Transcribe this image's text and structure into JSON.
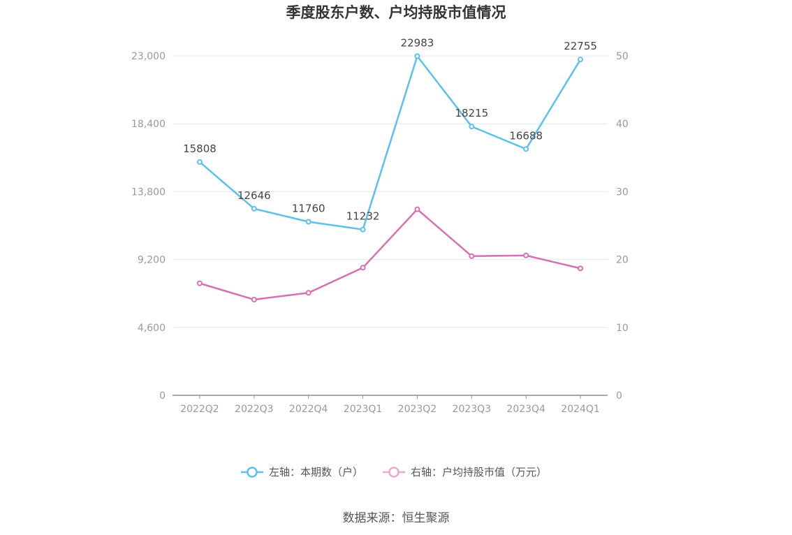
{
  "chart_data": {
    "type": "line",
    "title": "季度股东户数、户均持股市值情况",
    "categories": [
      "2022Q2",
      "2022Q3",
      "2022Q4",
      "2023Q1",
      "2023Q2",
      "2023Q3",
      "2023Q4",
      "2024Q1"
    ],
    "left_axis": {
      "ticks": [
        "0",
        "4,600",
        "9,200",
        "13,800",
        "18,400",
        "23,000"
      ],
      "ylim": [
        0,
        23000
      ]
    },
    "right_axis": {
      "ticks": [
        "0",
        "10",
        "20",
        "30",
        "40",
        "50"
      ],
      "ylim": [
        0,
        50
      ]
    },
    "series": [
      {
        "name": "左轴：本期数（户）",
        "axis": "left",
        "color": "#5bc0eb",
        "values": [
          15808,
          12646,
          11760,
          11232,
          22983,
          18215,
          16688,
          22755
        ],
        "labels": [
          "15808",
          "12646",
          "11760",
          "11232",
          "22983",
          "18215",
          "16688",
          "22755"
        ]
      },
      {
        "name": "右轴：户均持股市值（万元）",
        "axis": "right",
        "color": "#d66fb3",
        "values": [
          16.5,
          14.1,
          15.1,
          18.8,
          27.4,
          20.5,
          20.6,
          18.7
        ]
      }
    ],
    "legend_position": "bottom",
    "grid": true
  },
  "footer": {
    "source": "数据来源：恒生聚源"
  }
}
